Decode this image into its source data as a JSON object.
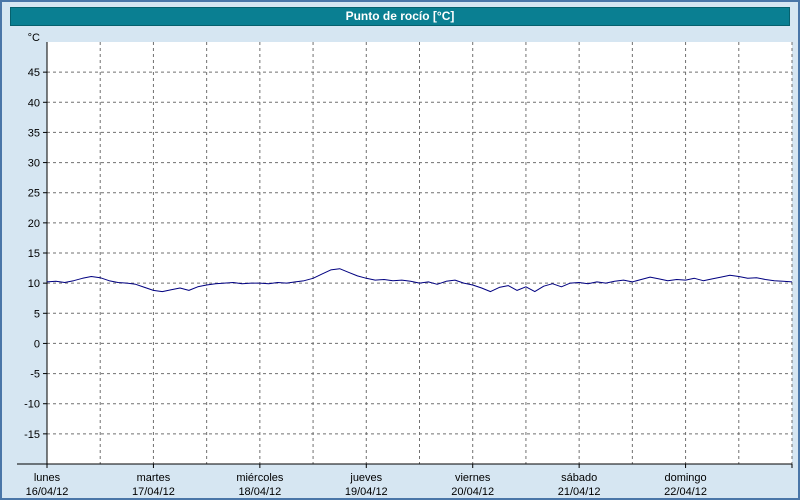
{
  "title": "Punto de rocío [°C]",
  "colors": {
    "page_bg": "#d6e6f2",
    "page_border": "#4a76a8",
    "header_bg": "#0a7f92",
    "header_text": "#ffffff",
    "plot_bg": "#ffffff",
    "grid": "#707070",
    "axis": "#000000",
    "label": "#000000",
    "line": "#000080"
  },
  "chart_data": {
    "type": "line",
    "title": "Punto de rocío [°C]",
    "ylabel": "°C",
    "ylim": [
      -20,
      50
    ],
    "yticks": [
      45,
      40,
      35,
      30,
      25,
      20,
      15,
      10,
      5,
      0,
      -5,
      -10,
      -15
    ],
    "grid": true,
    "legend": "none",
    "minor_gridlines_per_day": 2,
    "hours_per_point": 2,
    "days": [
      {
        "name": "lunes",
        "date": "16/04/12"
      },
      {
        "name": "martes",
        "date": "17/04/12"
      },
      {
        "name": "miércoles",
        "date": "18/04/12"
      },
      {
        "name": "jueves",
        "date": "19/04/12"
      },
      {
        "name": "viernes",
        "date": "20/04/12"
      },
      {
        "name": "sábado",
        "date": "21/04/12"
      },
      {
        "name": "domingo",
        "date": "22/04/12"
      }
    ],
    "series": [
      {
        "name": "Punto de rocío",
        "color": "#000080",
        "values": [
          10.2,
          10.3,
          10.1,
          10.4,
          10.8,
          11.1,
          10.9,
          10.4,
          10.1,
          10.0,
          9.8,
          9.3,
          8.8,
          8.6,
          8.9,
          9.2,
          8.8,
          9.4,
          9.7,
          9.9,
          10.0,
          10.1,
          9.9,
          10.0,
          10.0,
          9.9,
          10.1,
          10.0,
          10.2,
          10.4,
          10.8,
          11.5,
          12.2,
          12.4,
          11.8,
          11.2,
          10.8,
          10.5,
          10.6,
          10.4,
          10.5,
          10.3,
          10.0,
          10.2,
          9.8,
          10.3,
          10.5,
          10.0,
          9.7,
          9.2,
          8.6,
          9.3,
          9.6,
          8.8,
          9.4,
          8.6,
          9.5,
          9.9,
          9.4,
          10.0,
          10.1,
          9.9,
          10.2,
          10.0,
          10.3,
          10.5,
          10.2,
          10.6,
          11.0,
          10.7,
          10.4,
          10.6,
          10.5,
          10.8,
          10.4,
          10.7,
          11.0,
          11.3,
          11.1,
          10.8,
          10.9,
          10.6,
          10.4,
          10.3,
          10.2
        ]
      }
    ]
  }
}
